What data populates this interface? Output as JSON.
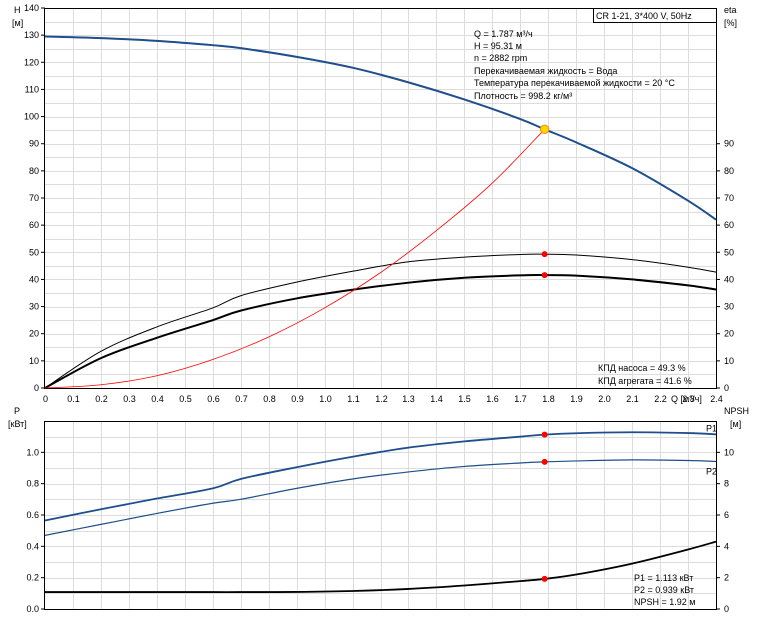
{
  "chart_data": [
    {
      "type": "line",
      "panel": "top",
      "title": "CR 1-21, 3*400 V, 50Hz",
      "xlabel": "Q [м³/ч]",
      "ylabel_left": "H [м]",
      "ylabel_right": "eta [%]",
      "xlim": [
        0,
        2.4
      ],
      "ylim_left": [
        0,
        140
      ],
      "ylim_right": [
        0,
        140
      ],
      "x_ticks": [
        "0",
        "0.1",
        "0.2",
        "0.3",
        "0.4",
        "0.5",
        "0.6",
        "0.7",
        "0.8",
        "0.9",
        "1.0",
        "1.1",
        "1.2",
        "1.3",
        "1.4",
        "1.5",
        "1.6",
        "1.7",
        "1.8",
        "1.9",
        "2.0",
        "2.1",
        "2.2",
        "2.3",
        "2.4"
      ],
      "y_ticks_left": [
        "0",
        "10",
        "20",
        "30",
        "40",
        "50",
        "60",
        "70",
        "80",
        "90",
        "100",
        "110",
        "120",
        "130",
        "140"
      ],
      "y_ticks_right": [
        "0",
        "10",
        "20",
        "30",
        "40",
        "50",
        "60",
        "70",
        "80",
        "90"
      ],
      "grid": true,
      "series": [
        {
          "name": "H",
          "color": "#1f4e8c",
          "width_hint": "thick",
          "x": [
            0,
            0.2,
            0.4,
            0.6,
            0.7,
            0.9,
            1.1,
            1.3,
            1.5,
            1.7,
            1.787,
            1.9,
            2.1,
            2.3,
            2.4
          ],
          "values": [
            129.5,
            128.9,
            127.9,
            126.3,
            125.2,
            122.0,
            118.0,
            112.6,
            106.3,
            99.1,
            95.31,
            90.5,
            81.0,
            69.0,
            62.0
          ]
        },
        {
          "name": "КПД насоса",
          "color": "#000000",
          "width_hint": "thin",
          "x": [
            0,
            0.2,
            0.4,
            0.6,
            0.7,
            0.9,
            1.1,
            1.3,
            1.5,
            1.7,
            1.787,
            1.9,
            2.1,
            2.3,
            2.4
          ],
          "values": [
            0,
            13.5,
            22.5,
            29.5,
            34.0,
            39.0,
            43.0,
            46.5,
            48.2,
            49.2,
            49.3,
            49.0,
            47.3,
            44.5,
            42.7
          ]
        },
        {
          "name": "КПД агрегата",
          "color": "#000000",
          "width_hint": "thick",
          "x": [
            0,
            0.2,
            0.4,
            0.6,
            0.7,
            0.9,
            1.1,
            1.3,
            1.5,
            1.7,
            1.787,
            1.9,
            2.1,
            2.3,
            2.4
          ],
          "values": [
            0,
            11.0,
            18.5,
            25.0,
            28.5,
            33.0,
            36.2,
            38.8,
            40.6,
            41.5,
            41.6,
            41.4,
            40.0,
            37.8,
            36.3
          ]
        },
        {
          "name": "system curve",
          "color": "#ff0000",
          "width_hint": "hair",
          "x": [
            0,
            0.2,
            0.4,
            0.6,
            0.8,
            1.0,
            1.2,
            1.4,
            1.6,
            1.787
          ],
          "values": [
            0,
            1.2,
            4.5,
            10.5,
            18.8,
            29.5,
            42.5,
            58.0,
            75.5,
            95.31
          ]
        }
      ],
      "operating_point": {
        "x": 1.787,
        "H": 95.31,
        "eta_pump": 49.3,
        "eta_unit": 41.6
      },
      "info_lines": [
        "Q = 1.787 м³/ч",
        "H = 95.31 м",
        "n = 2882 rpm",
        "Перекачиваемая жидкость = Вода",
        "Температура перекачиваемой жидкости = 20 °C",
        "Плотность = 998.2 кг/м³"
      ],
      "annotations": [
        "КПД насоса = 49.3 %",
        "КПД агрегата = 41.6 %"
      ]
    },
    {
      "type": "line",
      "panel": "bottom",
      "ylabel_left": "P [кВт]",
      "ylabel_right": "NPSH [м]",
      "xlim": [
        0,
        2.4
      ],
      "ylim_left": [
        0,
        1.2
      ],
      "ylim_right": [
        0,
        12
      ],
      "y_ticks_left": [
        "0.0",
        "0.2",
        "0.4",
        "0.6",
        "0.8",
        "1.0"
      ],
      "y_ticks_right": [
        "0",
        "2",
        "4",
        "6",
        "8",
        "10"
      ],
      "grid": true,
      "series": [
        {
          "name": "P1",
          "color": "#1f4e8c",
          "x": [
            0,
            0.2,
            0.4,
            0.6,
            0.7,
            0.9,
            1.1,
            1.3,
            1.5,
            1.7,
            1.787,
            1.9,
            2.1,
            2.3,
            2.4
          ],
          "values": [
            0.565,
            0.637,
            0.705,
            0.77,
            0.83,
            0.905,
            0.972,
            1.03,
            1.07,
            1.1,
            1.113,
            1.122,
            1.128,
            1.123,
            1.115
          ]
        },
        {
          "name": "P2",
          "color": "#1f4e8c",
          "x": [
            0,
            0.2,
            0.4,
            0.6,
            0.7,
            0.9,
            1.1,
            1.3,
            1.5,
            1.7,
            1.787,
            1.9,
            2.1,
            2.3,
            2.4
          ],
          "values": [
            0.47,
            0.54,
            0.61,
            0.675,
            0.7,
            0.77,
            0.83,
            0.875,
            0.91,
            0.932,
            0.939,
            0.945,
            0.952,
            0.948,
            0.942
          ]
        },
        {
          "name": "NPSH",
          "color": "#000000",
          "axis": "right",
          "x": [
            0,
            0.2,
            0.4,
            0.6,
            0.7,
            0.9,
            1.1,
            1.3,
            1.5,
            1.7,
            1.787,
            1.9,
            2.1,
            2.3,
            2.4
          ],
          "values": [
            1.08,
            1.08,
            1.08,
            1.08,
            1.08,
            1.09,
            1.15,
            1.28,
            1.5,
            1.78,
            1.92,
            2.2,
            2.9,
            3.8,
            4.3
          ]
        }
      ],
      "operating_point": {
        "x": 1.787,
        "P1": 1.113,
        "P2": 0.939,
        "NPSH": 1.92
      },
      "annotations": [
        "P1 = 1.113 кВт",
        "P2 = 0.939 кВт",
        "NPSH = 1.92 м"
      ]
    }
  ]
}
